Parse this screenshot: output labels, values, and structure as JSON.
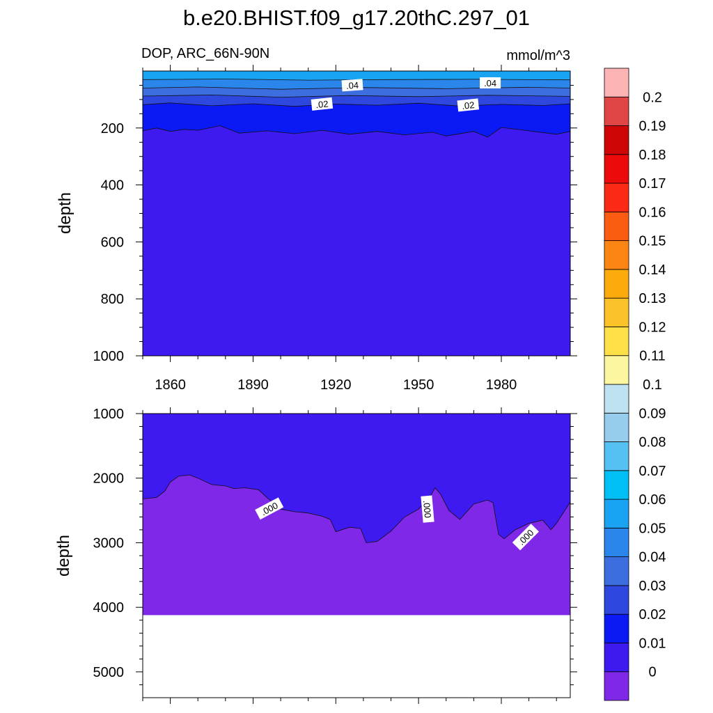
{
  "chart_data": {
    "type": "heatmap",
    "title": "b.e20.BHIST.f09_g17.20thC.297_01",
    "left_subtitle": "DOP, ARC_66N-90N",
    "right_subtitle": "mmol/m^3",
    "x": {
      "range": [
        1850,
        2005
      ],
      "ticks": [
        1860,
        1890,
        1920,
        1950,
        1980
      ]
    },
    "upper_panel": {
      "ylabel": "depth",
      "ylim": [
        0,
        1000
      ],
      "yticks": [
        200,
        400,
        600,
        800,
        1000
      ],
      "bands": [
        {
          "level_lo": 0.05,
          "depth": [
            [
              1850,
              0
            ],
            [
              2005,
              0
            ]
          ]
        },
        {
          "level_lo": 0.04,
          "depth": [
            [
              1850,
              30
            ],
            [
              1880,
              28
            ],
            [
              1910,
              32
            ],
            [
              1940,
              30
            ],
            [
              1970,
              29
            ],
            [
              2005,
              31
            ]
          ]
        },
        {
          "level_lo": 0.03,
          "depth": [
            [
              1850,
              60
            ],
            [
              1870,
              56
            ],
            [
              1900,
              64
            ],
            [
              1930,
              58
            ],
            [
              1960,
              62
            ],
            [
              1990,
              57
            ],
            [
              2005,
              60
            ]
          ]
        },
        {
          "level_lo": 0.02,
          "depth": [
            [
              1850,
              88
            ],
            [
              1875,
              84
            ],
            [
              1900,
              92
            ],
            [
              1925,
              86
            ],
            [
              1950,
              90
            ],
            [
              1975,
              85
            ],
            [
              2005,
              89
            ]
          ]
        },
        {
          "level_lo": 0.01,
          "depth": [
            [
              1850,
              118
            ],
            [
              1860,
              112
            ],
            [
              1875,
              122
            ],
            [
              1890,
              115
            ],
            [
              1905,
              124
            ],
            [
              1920,
              116
            ],
            [
              1935,
              120
            ],
            [
              1950,
              113
            ],
            [
              1965,
              123
            ],
            [
              1980,
              117
            ],
            [
              1995,
              121
            ],
            [
              2005,
              115
            ]
          ]
        },
        {
          "level_lo": 0.0,
          "depth": [
            [
              1850,
              210
            ],
            [
              1855,
              200
            ],
            [
              1860,
              212
            ],
            [
              1865,
              205
            ],
            [
              1870,
              208
            ],
            [
              1878,
              192
            ],
            [
              1885,
              218
            ],
            [
              1895,
              210
            ],
            [
              1905,
              220
            ],
            [
              1915,
              208
            ],
            [
              1925,
              222
            ],
            [
              1935,
              212
            ],
            [
              1945,
              224
            ],
            [
              1955,
              215
            ],
            [
              1960,
              228
            ],
            [
              1970,
              212
            ],
            [
              1975,
              232
            ],
            [
              1980,
              198
            ],
            [
              1990,
              210
            ],
            [
              2000,
              222
            ],
            [
              2005,
              212
            ]
          ]
        }
      ],
      "contour_labels": [
        {
          "text": ".04",
          "x": 1926,
          "y": 52,
          "angle": -4
        },
        {
          "text": ".04",
          "x": 1976,
          "y": 44,
          "angle": 0
        },
        {
          "text": ".02",
          "x": 1915,
          "y": 118,
          "angle": -6
        },
        {
          "text": ".02",
          "x": 1968,
          "y": 122,
          "angle": -6
        }
      ]
    },
    "lower_panel": {
      "ylabel": "depth",
      "ylim": [
        1000,
        5400
      ],
      "yticks": [
        1000,
        2000,
        3000,
        4000,
        5000
      ],
      "bottom_depth": 4120,
      "zero_contour": [
        [
          1850,
          2320
        ],
        [
          1855,
          2300
        ],
        [
          1858,
          2200
        ],
        [
          1860,
          2060
        ],
        [
          1863,
          1970
        ],
        [
          1867,
          1950
        ],
        [
          1870,
          2000
        ],
        [
          1875,
          2100
        ],
        [
          1880,
          2120
        ],
        [
          1883,
          2160
        ],
        [
          1887,
          2150
        ],
        [
          1892,
          2180
        ],
        [
          1895,
          2300
        ],
        [
          1900,
          2480
        ],
        [
          1905,
          2520
        ],
        [
          1910,
          2540
        ],
        [
          1915,
          2590
        ],
        [
          1918,
          2640
        ],
        [
          1920,
          2830
        ],
        [
          1925,
          2760
        ],
        [
          1929,
          2780
        ],
        [
          1931,
          3000
        ],
        [
          1935,
          2980
        ],
        [
          1940,
          2820
        ],
        [
          1945,
          2600
        ],
        [
          1950,
          2480
        ],
        [
          1954,
          2300
        ],
        [
          1956,
          2150
        ],
        [
          1958,
          2250
        ],
        [
          1961,
          2500
        ],
        [
          1965,
          2640
        ],
        [
          1970,
          2400
        ],
        [
          1975,
          2340
        ],
        [
          1977,
          2380
        ],
        [
          1979,
          2870
        ],
        [
          1981,
          2940
        ],
        [
          1985,
          2800
        ],
        [
          1990,
          2700
        ],
        [
          1995,
          2650
        ],
        [
          1998,
          2800
        ],
        [
          2000,
          2700
        ],
        [
          2005,
          2370
        ]
      ],
      "contour_labels": [
        {
          "text": ".000",
          "x": 1896,
          "y": 2480,
          "angle": -28
        },
        {
          "text": ".000",
          "x": 1953,
          "y": 2480,
          "angle": 85
        },
        {
          "text": ".000",
          "x": 1989,
          "y": 2920,
          "angle": -45
        }
      ]
    },
    "colorbar": {
      "boundaries": [
        0,
        0.01,
        0.02,
        0.03,
        0.04,
        0.05,
        0.06,
        0.07,
        0.08,
        0.09,
        0.1,
        0.11,
        0.12,
        0.13,
        0.14,
        0.15,
        0.16,
        0.17,
        0.18,
        0.19,
        0.2
      ],
      "labels": [
        "0",
        "0.01",
        "0.02",
        "0.03",
        "0.04",
        "0.05",
        "0.06",
        "0.07",
        "0.08",
        "0.09",
        "0.1",
        "0.11",
        "0.12",
        "0.13",
        "0.14",
        "0.15",
        "0.16",
        "0.17",
        "0.18",
        "0.19",
        "0.2"
      ],
      "colors": [
        "#7f28e8",
        "#3e19f0",
        "#0b1af5",
        "#2e47de",
        "#3d6ee0",
        "#2a86ea",
        "#1aa3f2",
        "#00bff5",
        "#55c1f2",
        "#96ccec",
        "#bfe2f2",
        "#fdf6a0",
        "#fde048",
        "#fcc22a",
        "#fcaa0c",
        "#fc8514",
        "#fc5c12",
        "#fc2a14",
        "#ec0a0a",
        "#cf0606",
        "#e04646",
        "#fcb4b4"
      ]
    }
  }
}
